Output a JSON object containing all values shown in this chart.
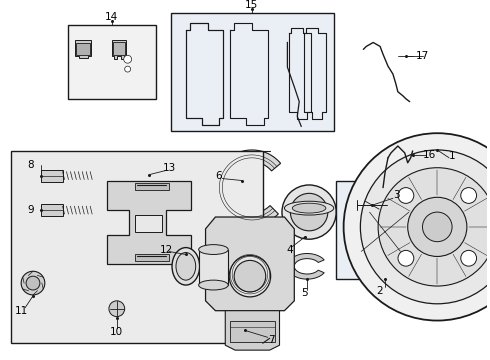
{
  "bg_color": "#ffffff",
  "line_color": "#1a1a1a",
  "box_fill_14": "#f2f2f2",
  "box_fill_15": "#eaeef5",
  "box_fill_bot": "#ebebeb",
  "box_fill_2": "#eaeef5",
  "label_fontsize": 7.5,
  "figsize": [
    4.9,
    3.6
  ],
  "dpi": 100
}
